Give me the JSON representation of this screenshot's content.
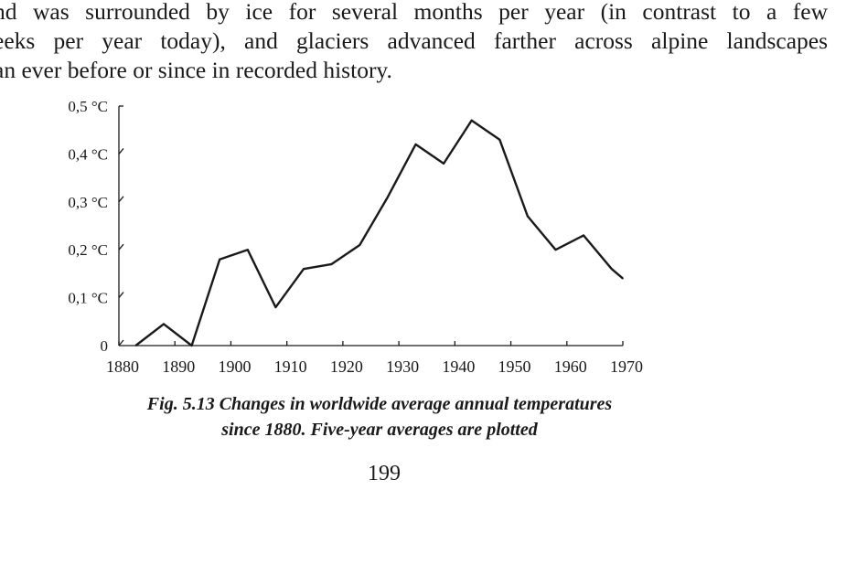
{
  "paragraph": {
    "lines": [
      "nd was surrounded by ice for several months per year (in contrast to a few",
      "eeks per year today), and glaciers advanced farther across alpine landscapes",
      "an ever before or since in recorded history."
    ]
  },
  "figure": {
    "caption_line1": "Fig. 5.13 Changes in worldwide average annual temperatures",
    "caption_line2": "since 1880. Five-year averages are plotted"
  },
  "page_number": "199",
  "chart_data": {
    "type": "line",
    "x": [
      1883,
      1888,
      1893,
      1898,
      1903,
      1908,
      1913,
      1918,
      1923,
      1928,
      1933,
      1938,
      1943,
      1948,
      1953,
      1958,
      1963,
      1968,
      1970
    ],
    "series": [
      {
        "values": [
          0.0,
          0.045,
          0.0,
          0.18,
          0.2,
          0.08,
          0.16,
          0.17,
          0.21,
          0.31,
          0.42,
          0.38,
          0.47,
          0.43,
          0.27,
          0.2,
          0.23,
          0.16,
          0.14
        ]
      }
    ],
    "xlim": [
      1880,
      1970
    ],
    "ylim": [
      0,
      0.5
    ],
    "x_ticks": [
      1880,
      1890,
      1900,
      1910,
      1920,
      1930,
      1940,
      1950,
      1960,
      1970
    ],
    "x_tick_labels": [
      "1880",
      "1890",
      "1900",
      "1910",
      "1920",
      "1930",
      "1940",
      "1950",
      "1960",
      "1970"
    ],
    "y_ticks": [
      0,
      0.1,
      0.2,
      0.3,
      0.4,
      0.5
    ],
    "y_tick_labels": [
      "0",
      "0,1 °C",
      "0,2 °C",
      "0,3 °C",
      "0,4 °C",
      "0,5 °C"
    ],
    "grid": false,
    "line_color": "#1a1a1a"
  }
}
